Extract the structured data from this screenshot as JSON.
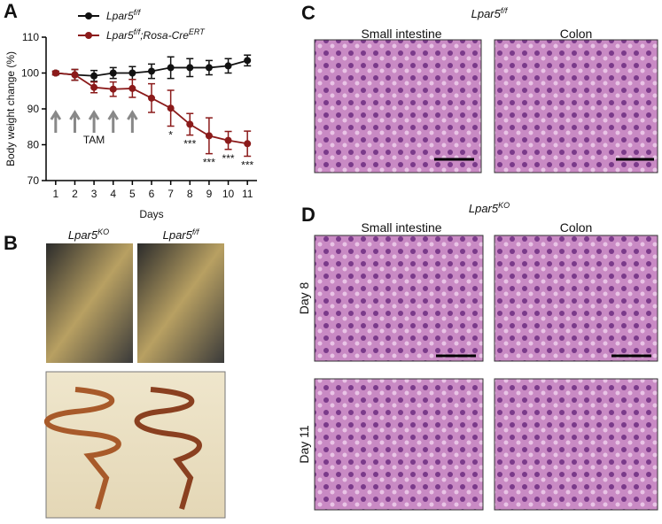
{
  "panel_labels": [
    "A",
    "B",
    "C",
    "D"
  ],
  "panel_b": {
    "labels": [
      [
        {
          "text": "Lpar5"
        },
        {
          "text": "KO",
          "sup": true
        }
      ],
      [
        {
          "text": "Lpar5"
        },
        {
          "text": "f/f",
          "sup": true
        }
      ]
    ]
  },
  "panel_c": {
    "title": [
      {
        "text": "Lpar5"
      },
      {
        "text": "f/f",
        "sup": true
      }
    ],
    "columns": [
      "Small intestine",
      "Colon"
    ]
  },
  "panel_d": {
    "title": [
      {
        "text": "Lpar5"
      },
      {
        "text": "KO",
        "sup": true
      }
    ],
    "columns": [
      "Small intestine",
      "Colon"
    ],
    "rows": [
      "Day 8",
      "Day 11"
    ]
  },
  "chart_data": {
    "type": "line",
    "x_label": "Days",
    "y_label": "Body weight change (%)",
    "x": [
      1,
      2,
      3,
      4,
      5,
      6,
      7,
      8,
      9,
      10,
      11
    ],
    "series": [
      {
        "name": [
          {
            "text": "Lpar5"
          },
          {
            "text": "f/f",
            "sup": true
          }
        ],
        "color": "#111111",
        "values": [
          100,
          99.5,
          99.2,
          100,
          100,
          100.5,
          101.5,
          101.5,
          101.5,
          102,
          103.5
        ],
        "errors": [
          0.5,
          1.5,
          1.5,
          1.5,
          1.8,
          2,
          3,
          2.5,
          2,
          2,
          1.5
        ]
      },
      {
        "name": [
          {
            "text": "Lpar5"
          },
          {
            "text": "f/f",
            "sup": true
          },
          {
            "text": ";Rosa-Cre"
          },
          {
            "text": "ERT",
            "sup": true
          }
        ],
        "color": "#8b1a1a",
        "values": [
          100,
          99.5,
          96,
          95.5,
          95.7,
          93,
          90.2,
          85.7,
          82.5,
          81.2,
          80.3
        ],
        "errors": [
          0.5,
          1.5,
          1.5,
          2,
          2.5,
          4,
          5,
          3,
          5,
          2.5,
          3.5
        ]
      }
    ],
    "xlim": [
      0.5,
      11.5
    ],
    "xticks": [
      1,
      2,
      3,
      4,
      5,
      6,
      7,
      8,
      9,
      10,
      11
    ],
    "ylim": [
      70,
      110
    ],
    "yticks": [
      70,
      80,
      90,
      100,
      110
    ],
    "tam": {
      "label": "TAM",
      "days": [
        1,
        2,
        3,
        4,
        5
      ]
    },
    "annotations": [
      {
        "text": "*",
        "x": 7
      },
      {
        "text": "***",
        "x": 8
      },
      {
        "text": "***",
        "x": 9
      },
      {
        "text": "***",
        "x": 10
      },
      {
        "text": "***",
        "x": 11
      }
    ]
  }
}
